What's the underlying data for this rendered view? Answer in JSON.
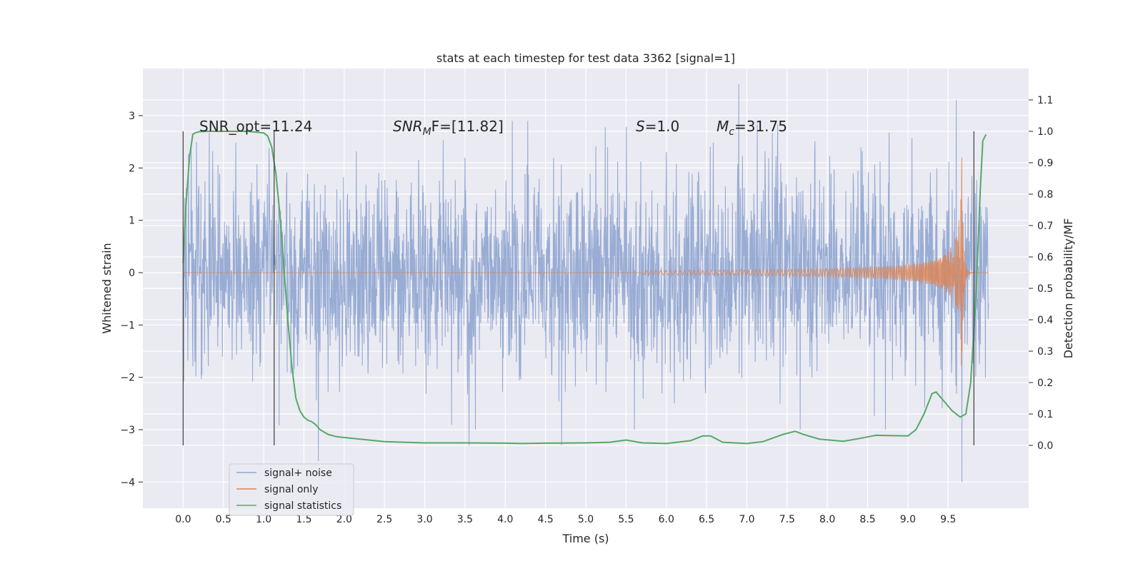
{
  "chart_data": {
    "type": "line",
    "title": "stats at each timestep for test data 3362 [signal=1]",
    "xlabel": "Time (s)",
    "ylabel": "Whitened strain",
    "y2label": "Detection probability/MF",
    "xlim": [
      -0.5,
      10.5
    ],
    "ylim": [
      -4.5,
      3.9
    ],
    "y2lim": [
      -0.2,
      1.2
    ],
    "x_ticks": [
      "0.0",
      "0.5",
      "1.0",
      "1.5",
      "2.0",
      "2.5",
      "3.0",
      "3.5",
      "4.0",
      "4.5",
      "5.0",
      "5.5",
      "6.0",
      "6.5",
      "7.0",
      "7.5",
      "8.0",
      "8.5",
      "9.0",
      "9.5"
    ],
    "y_ticks": [
      "3",
      "2",
      "1",
      "0",
      "−1",
      "−2",
      "−3",
      "−4"
    ],
    "y2_ticks": [
      "1.1",
      "1.0",
      "0.9",
      "0.8",
      "0.7",
      "0.6",
      "0.5",
      "0.4",
      "0.3",
      "0.2",
      "0.1",
      "0.0"
    ],
    "grid": true,
    "legend_position": "lower-left",
    "annotations": {
      "snr_opt": "SNR_opt=11.24",
      "snr_mf_name": "SNR",
      "snr_mf_sub": "M",
      "snr_mf_rest": "F=[11.82]",
      "s_name": "S",
      "s_rest": "=1.0",
      "mc_name": "M",
      "mc_sub": "c",
      "mc_rest": "=31.75"
    },
    "vertical_markers": [
      0.0,
      1.13,
      9.82
    ],
    "series": [
      {
        "name": "signal+ noise",
        "color": "#8fa5d0",
        "t_range": [
          0.0,
          10.0
        ],
        "typical_amplitude": 1.5,
        "extremes": [
          [
            0.1,
            2.4
          ],
          [
            6.9,
            3.6
          ],
          [
            9.6,
            3.3
          ],
          [
            1.68,
            -3.6
          ],
          [
            9.67,
            -4.0
          ],
          [
            3.55,
            -3.3
          ],
          [
            4.7,
            -3.3
          ]
        ]
      },
      {
        "name": "signal only",
        "color": "#dd8452",
        "chirp_start": 5.7,
        "merger_time": 9.67,
        "peak_amplitude": 2.2,
        "ringdown_end": 9.85
      },
      {
        "name": "signal statistics",
        "color": "#55a868",
        "x": [
          0.0,
          0.03,
          0.08,
          0.12,
          0.15,
          0.2,
          0.3,
          0.5,
          0.8,
          1.0,
          1.05,
          1.1,
          1.15,
          1.2,
          1.25,
          1.3,
          1.35,
          1.4,
          1.45,
          1.5,
          1.55,
          1.6,
          1.65,
          1.7,
          1.8,
          1.9,
          2.0,
          2.2,
          2.5,
          3.0,
          3.5,
          4.0,
          4.2,
          4.5,
          5.0,
          5.3,
          5.5,
          5.7,
          6.0,
          6.3,
          6.45,
          6.55,
          6.7,
          7.0,
          7.2,
          7.45,
          7.6,
          7.7,
          7.9,
          8.2,
          8.4,
          8.6,
          9.0,
          9.1,
          9.2,
          9.3,
          9.35,
          9.45,
          9.55,
          9.65,
          9.72,
          9.78,
          9.85,
          9.9,
          9.93,
          9.97
        ],
        "values": [
          0.58,
          0.75,
          0.92,
          0.99,
          0.995,
          0.999,
          1.0,
          1.0,
          1.0,
          0.995,
          0.985,
          0.95,
          0.87,
          0.74,
          0.57,
          0.4,
          0.25,
          0.15,
          0.11,
          0.09,
          0.08,
          0.075,
          0.065,
          0.05,
          0.035,
          0.028,
          0.025,
          0.02,
          0.012,
          0.008,
          0.008,
          0.007,
          0.006,
          0.007,
          0.008,
          0.01,
          0.017,
          0.008,
          0.006,
          0.015,
          0.03,
          0.03,
          0.01,
          0.006,
          0.012,
          0.035,
          0.045,
          0.035,
          0.02,
          0.013,
          0.022,
          0.032,
          0.03,
          0.05,
          0.1,
          0.165,
          0.17,
          0.14,
          0.11,
          0.09,
          0.1,
          0.2,
          0.5,
          0.82,
          0.97,
          0.99
        ]
      }
    ]
  }
}
